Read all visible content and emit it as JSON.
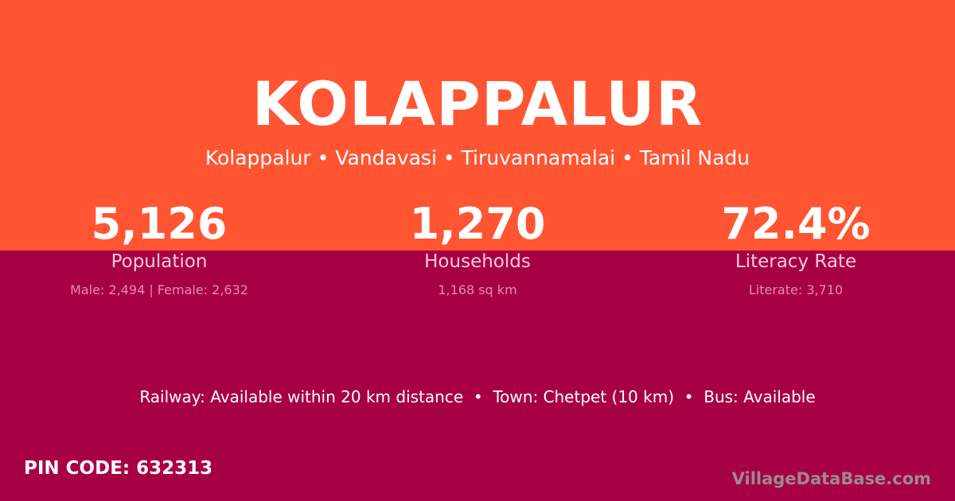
{
  "colors": {
    "top": "#ff5533",
    "bottom": "#a80044"
  },
  "title": "KOLAPPALUR",
  "subtitle": "Kolappalur • Vandavasi • Tiruvannamalai • Tamil Nadu",
  "stats": [
    {
      "value": "5,126",
      "label": "Population",
      "detail": "Male: 2,494 | Female: 2,632"
    },
    {
      "value": "1,270",
      "label": "Households",
      "detail": "1,168 sq km"
    },
    {
      "value": "72.4%",
      "label": "Literacy Rate",
      "detail": "Literate: 3,710"
    }
  ],
  "info": "Railway: Available within 20 km distance  •  Town: Chetpet (10 km)  •  Bus: Available",
  "pin": "PIN CODE: 632313",
  "brand": "VillageDataBase.com"
}
